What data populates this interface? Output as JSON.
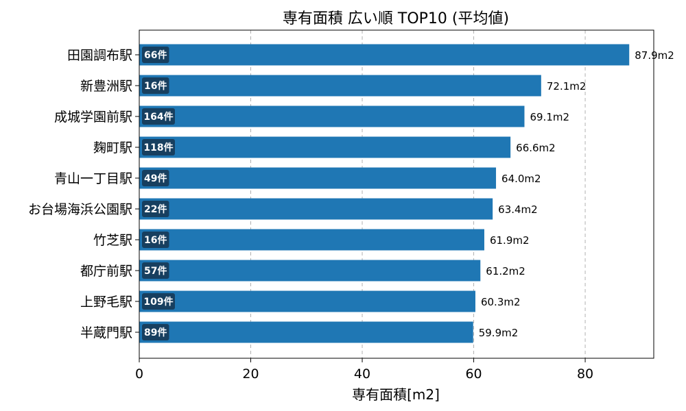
{
  "chart_data": {
    "type": "bar",
    "orientation": "horizontal",
    "title": "専有面積 広い順 TOP10 (平均値)",
    "xlabel": "専有面積[m2]",
    "ylabel": "",
    "xlim": [
      0,
      92.3
    ],
    "xticks": [
      0,
      20,
      40,
      60,
      80
    ],
    "grid": "x-dashed",
    "colors": {
      "bar": "#1f77b4",
      "count_box": "#173f5f"
    },
    "categories": [
      "田園調布駅",
      "新豊洲駅",
      "成城学園前駅",
      "麹町駅",
      "青山一丁目駅",
      "お台場海浜公園駅",
      "竹芝駅",
      "都庁前駅",
      "上野毛駅",
      "半蔵門駅"
    ],
    "values": [
      87.9,
      72.1,
      69.1,
      66.6,
      64.0,
      63.4,
      61.9,
      61.2,
      60.3,
      59.9
    ],
    "value_labels": [
      "87.9m2",
      "72.1m2",
      "69.1m2",
      "66.6m2",
      "64.0m2",
      "63.4m2",
      "61.9m2",
      "61.2m2",
      "60.3m2",
      "59.9m2"
    ],
    "counts": [
      "66件",
      "16件",
      "164件",
      "118件",
      "49件",
      "22件",
      "16件",
      "57件",
      "109件",
      "89件"
    ]
  }
}
